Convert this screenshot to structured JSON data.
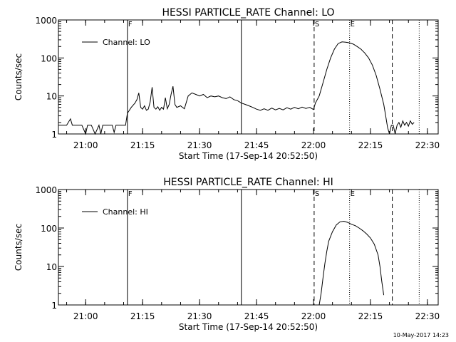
{
  "chart_data": [
    {
      "type": "line",
      "title": "HESSI PARTICLE_RATE Channel: LO",
      "xlabel": "Start Time (17-Sep-14 20:52:50)",
      "ylabel": "Counts/sec",
      "y_scale": "log",
      "ylim": [
        1,
        1000
      ],
      "xlim": [
        "20:52:50",
        "22:32:50"
      ],
      "yticks": [
        "1",
        "10",
        "100",
        "1000"
      ],
      "xticks": [
        "21:00",
        "21:15",
        "21:30",
        "21:45",
        "22:00",
        "22:15",
        "22:30"
      ],
      "legend": {
        "position": "top-left",
        "entries": [
          "Channel: LO"
        ]
      },
      "markers": [
        {
          "label": "F",
          "time": "21:11:00",
          "style": "solid"
        },
        {
          "label": "",
          "time": "21:41:00",
          "style": "solid"
        },
        {
          "label": "S",
          "time": "22:00:10",
          "style": "dashed"
        },
        {
          "label": "E",
          "time": "22:09:30",
          "style": "dotted"
        },
        {
          "label": "",
          "time": "22:20:45",
          "style": "dashed"
        },
        {
          "label": "",
          "time": "22:27:50",
          "style": "dotted"
        }
      ],
      "series": [
        {
          "name": "Channel: LO",
          "points": [
            [
              "20:52:50",
              1.7
            ],
            [
              "20:54:00",
              1.7
            ],
            [
              "20:55:00",
              1.7
            ],
            [
              "20:56:00",
              2.5
            ],
            [
              "20:56:30",
              1.7
            ],
            [
              "20:59:00",
              1.7
            ],
            [
              "21:00:00",
              1.0
            ],
            [
              "21:00:30",
              1.7
            ],
            [
              "21:01:30",
              1.7
            ],
            [
              "21:02:30",
              1.0
            ],
            [
              "21:03:30",
              1.7
            ],
            [
              "21:04:00",
              0.9
            ],
            [
              "21:04:30",
              1.7
            ],
            [
              "21:07:00",
              1.7
            ],
            [
              "21:07:30",
              1.1
            ],
            [
              "21:08:00",
              1.7
            ],
            [
              "21:10:30",
              1.7
            ],
            [
              "21:11:00",
              3.5
            ],
            [
              "21:12:00",
              5.0
            ],
            [
              "21:13:00",
              6.5
            ],
            [
              "21:13:30",
              8.0
            ],
            [
              "21:14:00",
              12.0
            ],
            [
              "21:14:30",
              5.0
            ],
            [
              "21:15:00",
              4.5
            ],
            [
              "21:15:30",
              5.5
            ],
            [
              "21:16:00",
              4.2
            ],
            [
              "21:16:30",
              4.5
            ],
            [
              "21:17:00",
              7.0
            ],
            [
              "21:17:30",
              17.0
            ],
            [
              "21:18:00",
              5.0
            ],
            [
              "21:18:30",
              4.5
            ],
            [
              "21:19:00",
              5.2
            ],
            [
              "21:19:30",
              4.2
            ],
            [
              "21:20:00",
              5.0
            ],
            [
              "21:20:30",
              4.5
            ],
            [
              "21:21:00",
              9.0
            ],
            [
              "21:21:30",
              4.6
            ],
            [
              "21:22:00",
              6.0
            ],
            [
              "21:22:30",
              11.0
            ],
            [
              "21:23:00",
              18.0
            ],
            [
              "21:23:30",
              6.0
            ],
            [
              "21:24:00",
              5.0
            ],
            [
              "21:25:00",
              5.5
            ],
            [
              "21:26:00",
              4.6
            ],
            [
              "21:27:00",
              10.0
            ],
            [
              "21:28:00",
              12.0
            ],
            [
              "21:29:00",
              11.0
            ],
            [
              "21:30:00",
              10.0
            ],
            [
              "21:31:00",
              11.0
            ],
            [
              "21:32:00",
              9.0
            ],
            [
              "21:33:00",
              10.0
            ],
            [
              "21:34:00",
              9.5
            ],
            [
              "21:35:00",
              10.0
            ],
            [
              "21:36:00",
              9.0
            ],
            [
              "21:37:00",
              8.5
            ],
            [
              "21:38:00",
              9.5
            ],
            [
              "21:39:00",
              8.0
            ],
            [
              "21:40:00",
              7.5
            ],
            [
              "21:41:00",
              6.5
            ],
            [
              "21:42:00",
              6.0
            ],
            [
              "21:43:00",
              5.5
            ],
            [
              "21:44:00",
              5.0
            ],
            [
              "21:45:00",
              4.5
            ],
            [
              "21:46:00",
              4.2
            ],
            [
              "21:47:00",
              4.6
            ],
            [
              "21:48:00",
              4.2
            ],
            [
              "21:49:00",
              4.8
            ],
            [
              "21:50:00",
              4.3
            ],
            [
              "21:51:00",
              4.7
            ],
            [
              "21:52:00",
              4.3
            ],
            [
              "21:53:00",
              4.9
            ],
            [
              "21:54:00",
              4.5
            ],
            [
              "21:55:00",
              5.0
            ],
            [
              "21:56:00",
              4.6
            ],
            [
              "21:57:00",
              5.1
            ],
            [
              "21:58:00",
              4.7
            ],
            [
              "21:59:00",
              5.0
            ],
            [
              "22:00:00",
              4.4
            ],
            [
              "22:00:30",
              6.5
            ],
            [
              "22:01:30",
              10.0
            ],
            [
              "22:02:30",
              22.0
            ],
            [
              "22:03:30",
              50.0
            ],
            [
              "22:04:30",
              100.0
            ],
            [
              "22:05:30",
              170.0
            ],
            [
              "22:06:30",
              240.0
            ],
            [
              "22:07:30",
              265.0
            ],
            [
              "22:08:30",
              260.0
            ],
            [
              "22:09:30",
              250.0
            ],
            [
              "22:10:30",
              230.0
            ],
            [
              "22:11:30",
              200.0
            ],
            [
              "22:12:30",
              170.0
            ],
            [
              "22:13:30",
              135.0
            ],
            [
              "22:14:30",
              100.0
            ],
            [
              "22:15:30",
              65.0
            ],
            [
              "22:16:30",
              35.0
            ],
            [
              "22:17:30",
              15.0
            ],
            [
              "22:18:30",
              6.0
            ],
            [
              "22:19:00",
              3.0
            ],
            [
              "22:19:30",
              1.5
            ],
            [
              "22:20:00",
              1.0
            ],
            [
              "22:20:30",
              1.7
            ],
            [
              "22:21:00",
              1.7
            ],
            [
              "22:21:30",
              0.9
            ],
            [
              "22:22:00",
              1.7
            ],
            [
              "22:22:30",
              2.0
            ],
            [
              "22:23:00",
              1.5
            ],
            [
              "22:23:30",
              2.2
            ],
            [
              "22:24:00",
              1.7
            ],
            [
              "22:24:30",
              2.0
            ],
            [
              "22:25:00",
              1.6
            ],
            [
              "22:25:30",
              2.2
            ],
            [
              "22:26:00",
              1.8
            ],
            [
              "22:26:30",
              2.0
            ]
          ]
        }
      ]
    },
    {
      "type": "line",
      "title": "HESSI PARTICLE_RATE Channel: HI",
      "xlabel": "Start Time (17-Sep-14 20:52:50)",
      "ylabel": "Counts/sec",
      "y_scale": "log",
      "ylim": [
        1,
        1000
      ],
      "xlim": [
        "20:52:50",
        "22:32:50"
      ],
      "yticks": [
        "1",
        "10",
        "100",
        "1000"
      ],
      "xticks": [
        "21:00",
        "21:15",
        "21:30",
        "21:45",
        "22:00",
        "22:15",
        "22:30"
      ],
      "legend": {
        "position": "top-left",
        "entries": [
          "Channel: HI"
        ]
      },
      "markers": [
        {
          "label": "F",
          "time": "21:11:00",
          "style": "solid"
        },
        {
          "label": "",
          "time": "21:41:00",
          "style": "solid"
        },
        {
          "label": "S",
          "time": "22:00:10",
          "style": "dashed"
        },
        {
          "label": "E",
          "time": "22:09:30",
          "style": "dotted"
        },
        {
          "label": "",
          "time": "22:20:45",
          "style": "dashed"
        },
        {
          "label": "",
          "time": "22:27:50",
          "style": "dotted"
        }
      ],
      "series": [
        {
          "name": "Channel: HI",
          "points": [
            [
              "22:01:30",
              1.0
            ],
            [
              "22:02:00",
              2.0
            ],
            [
              "22:02:30",
              5.0
            ],
            [
              "22:03:00",
              12.0
            ],
            [
              "22:03:30",
              25.0
            ],
            [
              "22:04:00",
              45.0
            ],
            [
              "22:05:00",
              80.0
            ],
            [
              "22:06:00",
              120.0
            ],
            [
              "22:07:00",
              145.0
            ],
            [
              "22:08:00",
              150.0
            ],
            [
              "22:09:00",
              140.0
            ],
            [
              "22:10:00",
              125.0
            ],
            [
              "22:11:00",
              115.0
            ],
            [
              "22:12:00",
              100.0
            ],
            [
              "22:13:00",
              85.0
            ],
            [
              "22:14:00",
              70.0
            ],
            [
              "22:15:00",
              55.0
            ],
            [
              "22:16:00",
              38.0
            ],
            [
              "22:17:00",
              20.0
            ],
            [
              "22:17:30",
              10.0
            ],
            [
              "22:18:00",
              4.0
            ],
            [
              "22:18:30",
              1.8
            ]
          ]
        }
      ]
    }
  ],
  "footer": {
    "timestamp": "10-May-2017 14:23"
  }
}
